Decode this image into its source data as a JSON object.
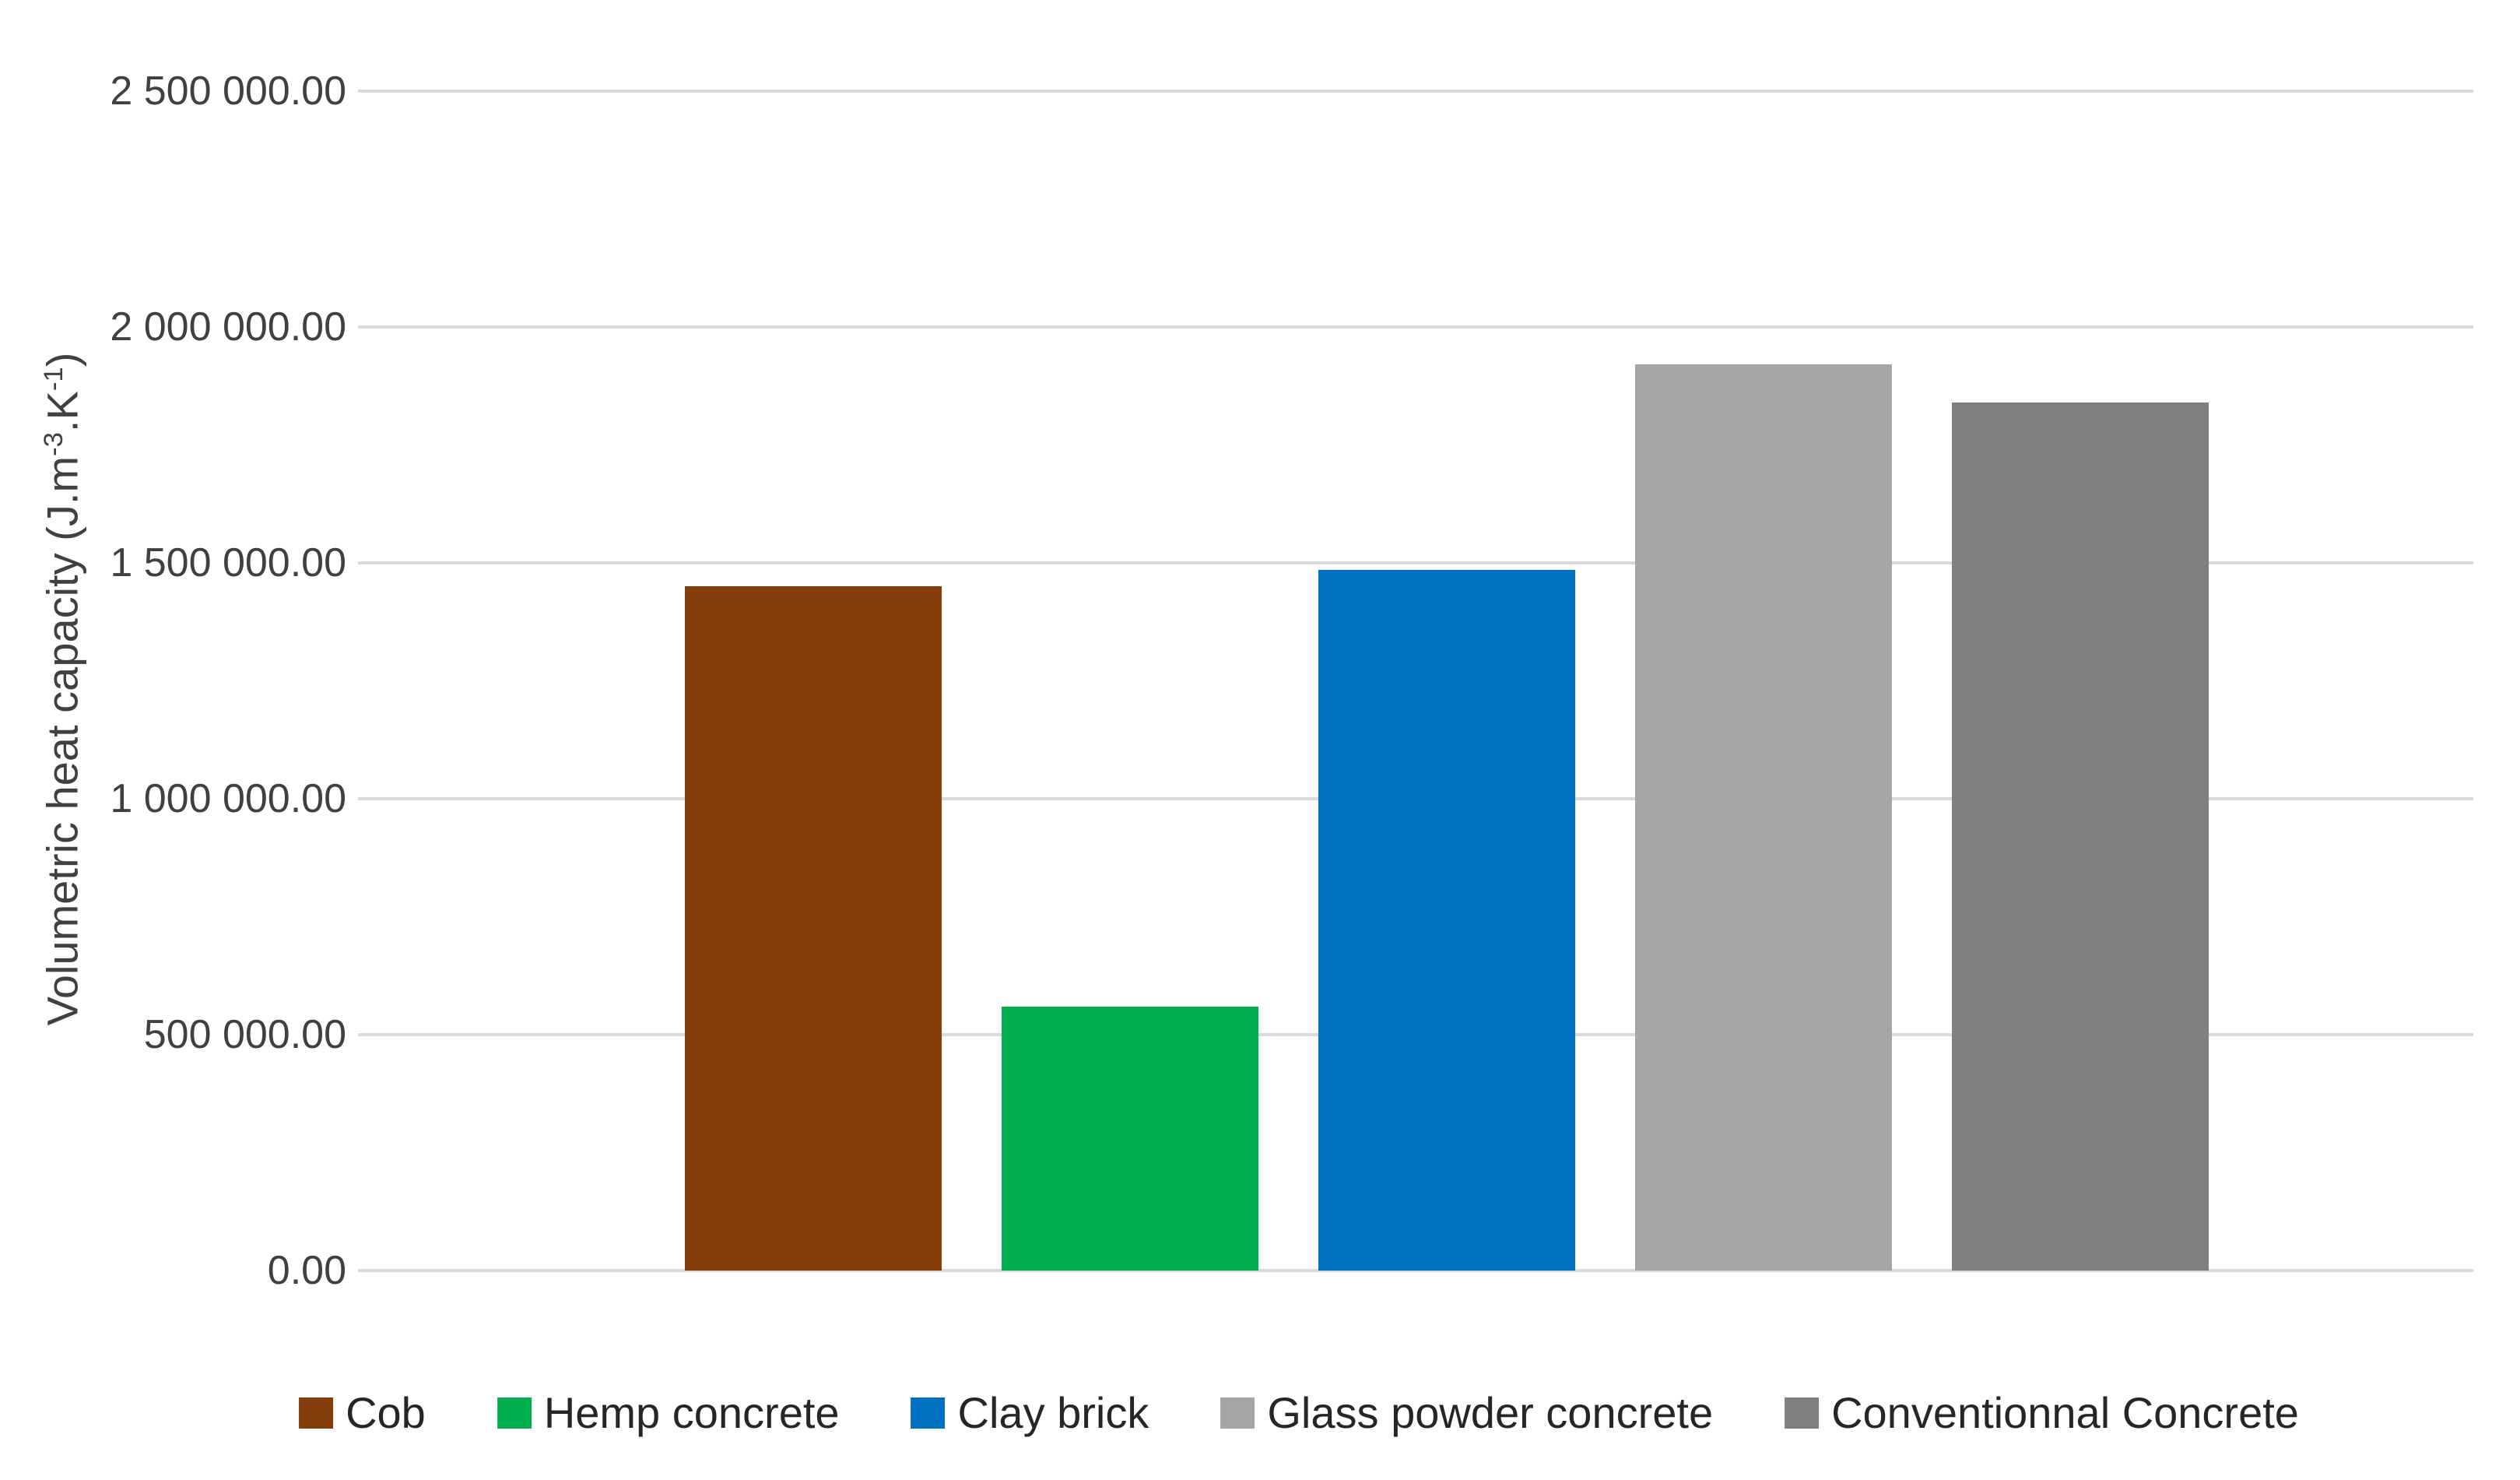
{
  "chart_data": {
    "type": "bar",
    "title": "",
    "ylabel": "Volumetric heat capacity (J.m⁻³.K⁻¹)",
    "ylabel_parts": {
      "prefix": "Volumetric heat capacity (J.m",
      "sup1": "-3",
      "mid": ".K",
      "sup2": "-1",
      "suffix": ")"
    },
    "categories": [
      "Cob",
      "Hemp concrete",
      "Clay brick",
      "Glass powder concrete",
      "Conventionnal Concrete"
    ],
    "values": [
      1450000,
      560000,
      1485000,
      1920000,
      1840000
    ],
    "bar_colors": [
      "#853D0C",
      "#00AE50",
      "#0070C0",
      "#A6A6A6",
      "#7F7F7F"
    ],
    "ylim": [
      0,
      2500000
    ],
    "ytick_interval": 500000,
    "ytick_labels": [
      "0.00",
      "500 000.00",
      "1 000 000.00",
      "1 500 000.00",
      "2 000 000.00",
      "2 500 000.00"
    ],
    "grid": true,
    "gridline_color": "#D9D9D9",
    "legend_position": "bottom",
    "xlabel": ""
  }
}
